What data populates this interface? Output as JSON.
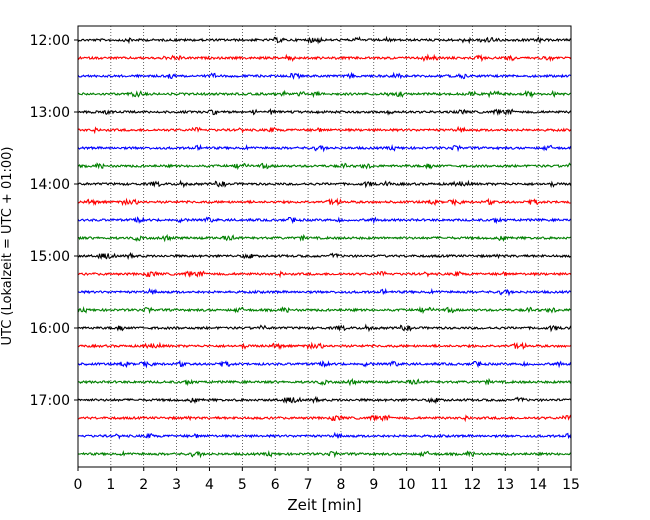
{
  "chart_data": {
    "type": "line",
    "title": "",
    "xlabel": "Zeit  [min]",
    "ylabel": "UTC (Lokalzeit = UTC + 01:00)",
    "xlim": [
      0,
      15
    ],
    "x_ticks": [
      0,
      1,
      2,
      3,
      4,
      5,
      6,
      7,
      8,
      9,
      10,
      11,
      12,
      13,
      14,
      15
    ],
    "y_tick_labels": [
      "12:00",
      "13:00",
      "14:00",
      "15:00",
      "16:00",
      "17:00"
    ],
    "grid": "vertical dotted",
    "legend": "none",
    "color_cycle": [
      "#000000",
      "#ff0000",
      "#0000ff",
      "#008000"
    ],
    "series": [
      {
        "start": "12:00",
        "color": "#000000"
      },
      {
        "start": "12:15",
        "color": "#ff0000"
      },
      {
        "start": "12:30",
        "color": "#0000ff"
      },
      {
        "start": "12:45",
        "color": "#008000"
      },
      {
        "start": "13:00",
        "color": "#000000"
      },
      {
        "start": "13:15",
        "color": "#ff0000"
      },
      {
        "start": "13:30",
        "color": "#0000ff"
      },
      {
        "start": "13:45",
        "color": "#008000"
      },
      {
        "start": "14:00",
        "color": "#000000"
      },
      {
        "start": "14:15",
        "color": "#ff0000"
      },
      {
        "start": "14:30",
        "color": "#0000ff"
      },
      {
        "start": "14:45",
        "color": "#008000"
      },
      {
        "start": "15:00",
        "color": "#000000"
      },
      {
        "start": "15:15",
        "color": "#ff0000"
      },
      {
        "start": "15:30",
        "color": "#0000ff"
      },
      {
        "start": "15:45",
        "color": "#008000"
      },
      {
        "start": "16:00",
        "color": "#000000"
      },
      {
        "start": "16:15",
        "color": "#ff0000"
      },
      {
        "start": "16:30",
        "color": "#0000ff"
      },
      {
        "start": "16:45",
        "color": "#008000"
      },
      {
        "start": "17:00",
        "color": "#000000"
      },
      {
        "start": "17:15",
        "color": "#ff0000"
      },
      {
        "start": "17:30",
        "color": "#0000ff"
      },
      {
        "start": "17:45",
        "color": "#008000"
      }
    ]
  }
}
